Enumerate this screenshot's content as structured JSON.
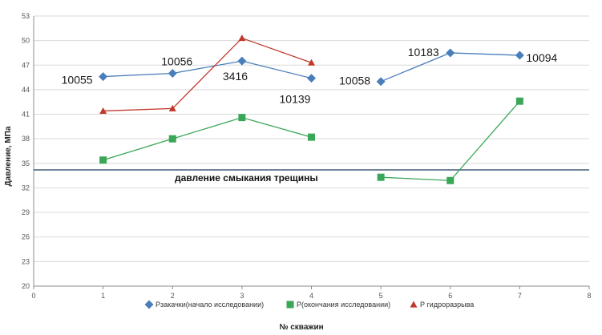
{
  "chart_data": {
    "type": "line",
    "title": "",
    "xlabel": "№ скважин",
    "ylabel": "Давление, МПа",
    "xlim": [
      0,
      8
    ],
    "ylim": [
      20,
      53
    ],
    "x_ticks": [
      "0",
      "1",
      "2",
      "3",
      "4",
      "5",
      "6",
      "7",
      "8"
    ],
    "y_ticks": [
      "20",
      "23",
      "26",
      "29",
      "32",
      "35",
      "38",
      "41",
      "44",
      "47",
      "50",
      "53"
    ],
    "grid": "horizontal",
    "legend_position": "bottom",
    "series": [
      {
        "name": "Рзакачки(начало исследовании)",
        "color": "#4a7ebb",
        "marker": "diamond",
        "segments": [
          [
            {
              "x": 1,
              "y": 45.6
            },
            {
              "x": 2,
              "y": 46.0
            },
            {
              "x": 3,
              "y": 47.5
            },
            {
              "x": 4,
              "y": 45.4
            }
          ],
          [
            {
              "x": 5,
              "y": 45.0
            },
            {
              "x": 6,
              "y": 48.5
            },
            {
              "x": 7,
              "y": 48.2
            }
          ]
        ]
      },
      {
        "name": "Р(окончания исследовании)",
        "color": "#3aa657",
        "marker": "square",
        "segments": [
          [
            {
              "x": 1,
              "y": 35.4
            },
            {
              "x": 2,
              "y": 38.0
            },
            {
              "x": 3,
              "y": 40.6
            },
            {
              "x": 4,
              "y": 38.2
            }
          ],
          [
            {
              "x": 5,
              "y": 33.3
            },
            {
              "x": 6,
              "y": 32.9
            },
            {
              "x": 7,
              "y": 42.6
            }
          ]
        ]
      },
      {
        "name": "Р гидроразрыва",
        "color": "#c0392b",
        "marker": "triangle",
        "segments": [
          [
            {
              "x": 1,
              "y": 41.4
            },
            {
              "x": 2,
              "y": 41.7
            },
            {
              "x": 3,
              "y": 50.3
            },
            {
              "x": 4,
              "y": 47.3
            }
          ]
        ]
      }
    ],
    "point_labels": [
      {
        "text": "10055",
        "x": 1,
        "y": 45.6
      },
      {
        "text": "10056",
        "x": 2,
        "y": 46.0
      },
      {
        "text": "3416",
        "x": 3,
        "y": 47.5
      },
      {
        "text": "10139",
        "x": 4,
        "y": 45.4
      },
      {
        "text": "10058",
        "x": 5,
        "y": 45.0
      },
      {
        "text": "10183",
        "x": 6,
        "y": 48.5
      },
      {
        "text": "10094",
        "x": 7,
        "y": 48.2
      }
    ],
    "reference_line": {
      "y": 34.2,
      "label": "давление смыкания трещины",
      "color": "#1f3a5f"
    }
  }
}
